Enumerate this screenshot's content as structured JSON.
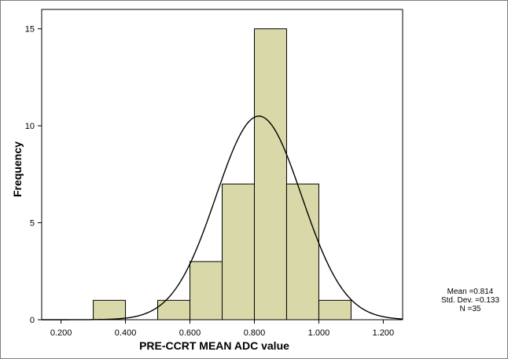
{
  "chart_data": {
    "type": "bar",
    "subtype": "histogram",
    "xlabel": "PRE-CCRT MEAN ADC value",
    "ylabel": "Frequency",
    "xlim": [
      0.14,
      1.26
    ],
    "ylim": [
      0,
      16
    ],
    "x_ticks": [
      0.2,
      0.4,
      0.6,
      0.8,
      1.0,
      1.2
    ],
    "x_tick_labels": [
      "0.200",
      "0.400",
      "0.600",
      "0.800",
      "1.000",
      "1.200"
    ],
    "y_ticks": [
      0,
      5,
      10,
      15
    ],
    "y_tick_labels": [
      "0",
      "5",
      "10",
      "15"
    ],
    "bins": [
      {
        "start": 0.3,
        "end": 0.4,
        "count": 1
      },
      {
        "start": 0.5,
        "end": 0.6,
        "count": 1
      },
      {
        "start": 0.6,
        "end": 0.7,
        "count": 3
      },
      {
        "start": 0.7,
        "end": 0.8,
        "count": 7
      },
      {
        "start": 0.8,
        "end": 0.9,
        "count": 15
      },
      {
        "start": 0.9,
        "end": 1.0,
        "count": 7
      },
      {
        "start": 1.0,
        "end": 1.1,
        "count": 1
      }
    ],
    "normal_curve": {
      "mean": 0.814,
      "std": 0.133,
      "n": 35,
      "bin_width": 0.1
    },
    "stats_lines": [
      "Mean =0.814",
      "Std. Dev. =0.133",
      "N =35"
    ],
    "bar_color": "#d8d8a8",
    "bar_stroke": "#000000",
    "curve_color": "#000000",
    "grid": false,
    "legend": "right"
  }
}
